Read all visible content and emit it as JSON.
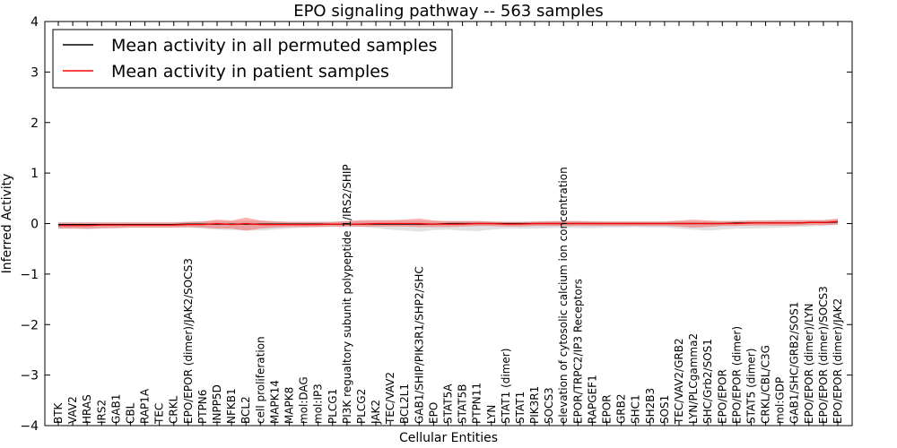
{
  "chart_data": {
    "type": "line",
    "title": "EPO signaling pathway -- 563 samples",
    "xlabel": "Cellular Entities",
    "ylabel": "Inferred Activity",
    "ylim": [
      -4,
      4
    ],
    "yticks": [
      -4,
      -3,
      -2,
      -1,
      0,
      1,
      2,
      3,
      4
    ],
    "grid": false,
    "legend_position": "top-left",
    "categories": [
      "BTK",
      "VAV2",
      "HRAS",
      "IRS2",
      "GAB1",
      "CBL",
      "RAP1A",
      "TEC",
      "CRKL",
      "EPO/EPOR (dimer)/JAK2/SOCS3",
      "PTPN6",
      "INPP5D",
      "NFKB1",
      "BCL2",
      "cell proliferation",
      "MAPK14",
      "MAPK8",
      "mol:DAG",
      "mol:IP3",
      "PLCG1",
      "PI3K regualtory subunit polypeptide 1/IRS2/SHIP",
      "PLCG2",
      "JAK2",
      "TEC/VAV2",
      "BCL2L1",
      "GAB1/SHIP/PIK3R1/SHP2/SHC",
      "EPO",
      "STAT5A",
      "STAT5B",
      "PTPN11",
      "LYN",
      "STAT1 (dimer)",
      "STAT1",
      "PIK3R1",
      "SOCS3",
      "elevation of cytosolic calcium ion concentration",
      "EPOR/TRPC2/IP3 Receptors",
      "RAPGEF1",
      "EPOR",
      "GRB2",
      "SHC1",
      "SH2B3",
      "SOS1",
      "TEC/VAV2/GRB2",
      "LYN/PLCgamma2",
      "SHC/Grb2/SOS1",
      "EPO/EPOR",
      "EPO/EPOR (dimer)",
      "STAT5 (dimer)",
      "CRKL/CBL/C3G",
      "mol:GDP",
      "GAB1/SHC/GRB2/SOS1",
      "EPO/EPOR (dimer)/LYN",
      "EPO/EPOR (dimer)/SOCS3",
      "EPO/EPOR (dimer)/JAK2"
    ],
    "series": [
      {
        "name": "Mean activity in all permuted samples",
        "color": "#000000",
        "values": [
          -0.02,
          -0.02,
          -0.02,
          -0.02,
          -0.02,
          -0.02,
          -0.02,
          -0.02,
          -0.02,
          -0.01,
          -0.01,
          -0.01,
          -0.01,
          -0.01,
          -0.01,
          -0.01,
          -0.01,
          -0.01,
          -0.01,
          -0.01,
          -0.01,
          -0.01,
          -0.01,
          -0.01,
          -0.01,
          -0.01,
          -0.01,
          0.0,
          0.0,
          0.0,
          0.0,
          0.0,
          0.0,
          0.0,
          0.0,
          0.0,
          0.0,
          0.0,
          0.0,
          0.0,
          0.0,
          0.0,
          0.0,
          0.0,
          0.0,
          0.0,
          0.0,
          0.01,
          0.01,
          0.01,
          0.01,
          0.01,
          0.02,
          0.02,
          0.03
        ],
        "band_upper": [
          0.03,
          0.03,
          0.03,
          0.03,
          0.03,
          0.03,
          0.03,
          0.03,
          0.03,
          0.04,
          0.05,
          0.05,
          0.05,
          0.06,
          0.06,
          0.05,
          0.04,
          0.04,
          0.04,
          0.04,
          0.05,
          0.05,
          0.06,
          0.06,
          0.06,
          0.06,
          0.05,
          0.05,
          0.05,
          0.05,
          0.04,
          0.04,
          0.04,
          0.04,
          0.04,
          0.05,
          0.05,
          0.05,
          0.04,
          0.04,
          0.04,
          0.04,
          0.04,
          0.05,
          0.05,
          0.05,
          0.05,
          0.06,
          0.06,
          0.06,
          0.06,
          0.06,
          0.07,
          0.07,
          0.08
        ],
        "band_lower": [
          -0.1,
          -0.1,
          -0.12,
          -0.1,
          -0.09,
          -0.08,
          -0.08,
          -0.08,
          -0.08,
          -0.08,
          -0.1,
          -0.12,
          -0.13,
          -0.14,
          -0.14,
          -0.12,
          -0.1,
          -0.08,
          -0.07,
          -0.07,
          -0.07,
          -0.07,
          -0.09,
          -0.12,
          -0.14,
          -0.16,
          -0.13,
          -0.12,
          -0.14,
          -0.15,
          -0.12,
          -0.1,
          -0.1,
          -0.1,
          -0.09,
          -0.08,
          -0.09,
          -0.09,
          -0.08,
          -0.08,
          -0.07,
          -0.08,
          -0.08,
          -0.1,
          -0.12,
          -0.14,
          -0.12,
          -0.1,
          -0.1,
          -0.09,
          -0.08,
          -0.07,
          -0.06,
          -0.04,
          -0.03
        ]
      },
      {
        "name": "Mean activity in patient samples",
        "color": "#ff0000",
        "values": [
          -0.04,
          -0.04,
          -0.04,
          -0.03,
          -0.03,
          -0.03,
          -0.03,
          -0.03,
          -0.03,
          -0.02,
          -0.02,
          0.0,
          -0.02,
          0.0,
          -0.02,
          -0.02,
          -0.02,
          -0.02,
          -0.02,
          -0.01,
          -0.01,
          -0.01,
          0.0,
          0.0,
          0.0,
          0.0,
          -0.01,
          -0.01,
          -0.01,
          0.0,
          0.0,
          -0.01,
          -0.01,
          0.0,
          0.0,
          0.0,
          0.0,
          0.0,
          0.0,
          0.0,
          0.0,
          0.0,
          0.0,
          0.0,
          0.0,
          0.0,
          0.0,
          0.0,
          0.01,
          0.01,
          0.01,
          0.01,
          0.02,
          0.02,
          0.04
        ],
        "band_upper": [
          0.02,
          0.02,
          0.02,
          0.02,
          0.02,
          0.02,
          0.02,
          0.02,
          0.02,
          0.03,
          0.04,
          0.08,
          0.06,
          0.12,
          0.06,
          0.04,
          0.03,
          0.03,
          0.03,
          0.03,
          0.05,
          0.07,
          0.07,
          0.07,
          0.08,
          0.1,
          0.06,
          0.05,
          0.05,
          0.05,
          0.04,
          0.03,
          0.03,
          0.04,
          0.05,
          0.05,
          0.05,
          0.04,
          0.04,
          0.04,
          0.04,
          0.04,
          0.04,
          0.06,
          0.08,
          0.06,
          0.05,
          0.05,
          0.06,
          0.06,
          0.07,
          0.07,
          0.07,
          0.07,
          0.1
        ],
        "band_lower": [
          -0.1,
          -0.1,
          -0.1,
          -0.09,
          -0.09,
          -0.08,
          -0.08,
          -0.08,
          -0.08,
          -0.07,
          -0.08,
          -0.1,
          -0.1,
          -0.14,
          -0.1,
          -0.08,
          -0.07,
          -0.07,
          -0.07,
          -0.06,
          -0.06,
          -0.06,
          -0.06,
          -0.06,
          -0.06,
          -0.07,
          -0.07,
          -0.07,
          -0.06,
          -0.05,
          -0.05,
          -0.06,
          -0.06,
          -0.05,
          -0.05,
          -0.05,
          -0.05,
          -0.05,
          -0.05,
          -0.05,
          -0.05,
          -0.05,
          -0.05,
          -0.06,
          -0.08,
          -0.07,
          -0.05,
          -0.05,
          -0.04,
          -0.04,
          -0.04,
          -0.04,
          -0.03,
          -0.03,
          -0.02
        ]
      }
    ]
  }
}
